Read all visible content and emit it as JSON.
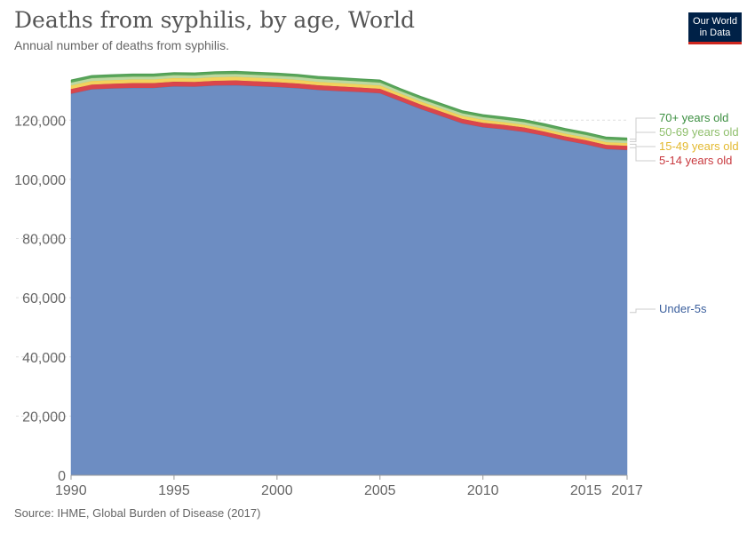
{
  "header": {
    "title": "Deaths from syphilis, by age, World",
    "subtitle": "Annual number of deaths from syphilis."
  },
  "logo": {
    "line1": "Our World",
    "line2": "in Data"
  },
  "footer": {
    "source": "Source: IHME, Global Burden of Disease (2017)"
  },
  "chart_data": {
    "type": "area",
    "stacked": true,
    "title": "Deaths from syphilis, by age, World",
    "subtitle": "Annual number of deaths from syphilis.",
    "xlabel": "",
    "ylabel": "",
    "xlim": [
      1990,
      2017
    ],
    "ylim": [
      0,
      136000
    ],
    "x_ticks": [
      1990,
      1995,
      2000,
      2005,
      2010,
      2015,
      2017
    ],
    "y_ticks": [
      0,
      20000,
      40000,
      60000,
      80000,
      100000,
      120000
    ],
    "y_tick_labels": [
      "0",
      "20,000",
      "40,000",
      "60,000",
      "80,000",
      "100,000",
      "120,000"
    ],
    "grid": "horizontal-dashed",
    "legend_position": "right",
    "x": [
      1990,
      1991,
      1992,
      1993,
      1994,
      1995,
      1996,
      1997,
      1998,
      1999,
      2000,
      2001,
      2002,
      2003,
      2004,
      2005,
      2006,
      2007,
      2008,
      2009,
      2010,
      2011,
      2012,
      2013,
      2014,
      2015,
      2016,
      2017
    ],
    "series": [
      {
        "name": "Under-5s",
        "color": "#6d8dc2",
        "values": [
          129000,
          130500,
          130800,
          131000,
          131000,
          131500,
          131400,
          131800,
          131900,
          131600,
          131300,
          130900,
          130300,
          129900,
          129600,
          129200,
          126500,
          123800,
          121400,
          119000,
          117700,
          117000,
          116100,
          114800,
          113200,
          111900,
          110300,
          110000
        ]
      },
      {
        "name": "5-14 years old",
        "color": "#d9464c",
        "values": [
          1600,
          1600,
          1600,
          1600,
          1600,
          1600,
          1600,
          1600,
          1600,
          1600,
          1600,
          1600,
          1600,
          1600,
          1500,
          1500,
          1500,
          1500,
          1500,
          1500,
          1500,
          1500,
          1500,
          1400,
          1400,
          1400,
          1400,
          1400
        ]
      },
      {
        "name": "15-49 years old",
        "color": "#f3d25c",
        "values": [
          1200,
          1200,
          1200,
          1200,
          1200,
          1200,
          1200,
          1200,
          1200,
          1200,
          1200,
          1200,
          1100,
          1100,
          1100,
          1100,
          1000,
          1000,
          1000,
          1000,
          1000,
          900,
          900,
          900,
          900,
          900,
          900,
          900
        ]
      },
      {
        "name": "50-69 years old",
        "color": "#bcd8a1",
        "values": [
          1000,
          1000,
          1000,
          1000,
          1000,
          1000,
          1000,
          1000,
          1000,
          1000,
          1000,
          1000,
          1000,
          1000,
          1000,
          1000,
          900,
          900,
          900,
          900,
          900,
          900,
          900,
          900,
          900,
          900,
          900,
          900
        ]
      },
      {
        "name": "70+ years old",
        "color": "#5aa65b",
        "values": [
          800,
          800,
          800,
          800,
          800,
          800,
          800,
          800,
          800,
          800,
          800,
          800,
          800,
          800,
          800,
          800,
          800,
          800,
          800,
          800,
          800,
          800,
          800,
          800,
          800,
          800,
          800,
          800
        ]
      }
    ],
    "legend_colors": {
      "Under-5s": "#3b5f9d",
      "5-14 years old": "#c8383e",
      "15-49 years old": "#e3b92f",
      "50-69 years old": "#8fbf6c",
      "70+ years old": "#3c8f41"
    }
  }
}
